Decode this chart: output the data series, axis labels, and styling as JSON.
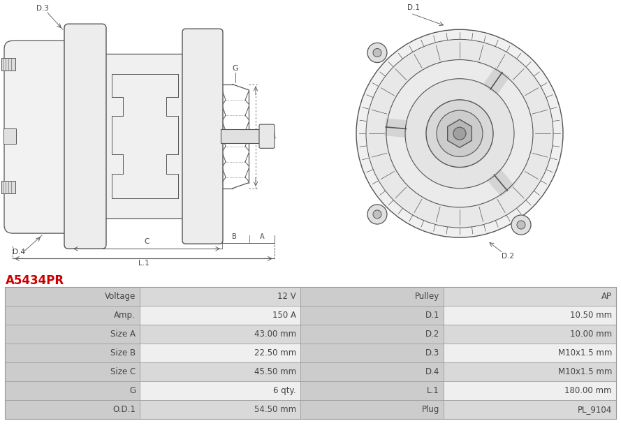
{
  "title": "A5434PR",
  "title_color": "#cc0000",
  "bg_color": "#ffffff",
  "table_header_bg": "#cccccc",
  "table_row_bg_dark": "#d9d9d9",
  "table_row_bg_light": "#efefef",
  "border_color": "#999999",
  "text_color": "#444444",
  "line_color": "#555555",
  "table_data": [
    [
      "Voltage",
      "12 V",
      "Pulley",
      "AP"
    ],
    [
      "Amp.",
      "150 A",
      "D.1",
      "10.50 mm"
    ],
    [
      "Size A",
      "43.00 mm",
      "D.2",
      "10.00 mm"
    ],
    [
      "Size B",
      "22.50 mm",
      "D.3",
      "M10x1.5 mm"
    ],
    [
      "Size C",
      "45.50 mm",
      "D.4",
      "M10x1.5 mm"
    ],
    [
      "G",
      "6 qty.",
      "L.1",
      "180.00 mm"
    ],
    [
      "O.D.1",
      "54.50 mm",
      "Plug",
      "PL_9104"
    ]
  ]
}
